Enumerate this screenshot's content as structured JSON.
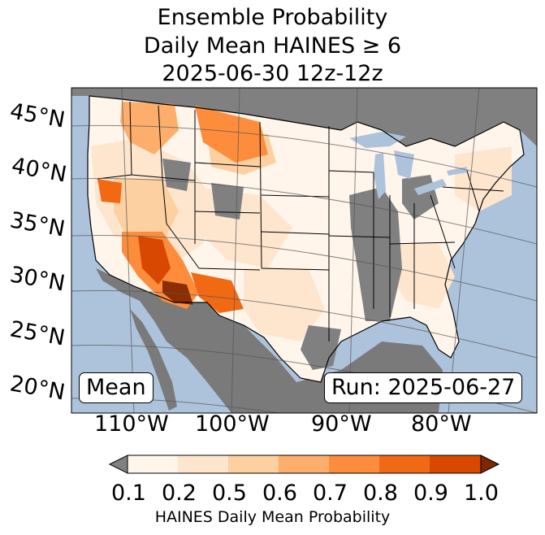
{
  "title_lines": [
    "Ensemble Probability",
    "Daily Mean HAINES ≥ 6",
    "2025-06-30 12z-12z"
  ],
  "latitude_labels": [
    "45°N",
    "40°N",
    "35°N",
    "30°N",
    "25°N",
    "20°N"
  ],
  "longitude_labels": [
    "110°W",
    "100°W",
    "90°W",
    "80°W"
  ],
  "mean_label": "Mean",
  "run_label": "Run: 2025-06-27",
  "colorbar": {
    "title": "HAINES Daily Mean Probability",
    "ticks": [
      "0.1",
      "0.2",
      "0.5",
      "0.6",
      "0.7",
      "0.8",
      "0.9",
      "1.0"
    ],
    "colors": [
      "#fff5eb",
      "#fee6ce",
      "#fdd0a2",
      "#fdae6b",
      "#fd8d3c",
      "#f16913",
      "#d94801",
      "#8c2d04"
    ],
    "under_color": "#808080",
    "over_color": "#7f2704"
  },
  "map_colors": {
    "ocean": "#adc3dc",
    "lakes": "#adc3dc",
    "land_nodata": "#808080",
    "foreign_land": "#7a7a7a"
  }
}
